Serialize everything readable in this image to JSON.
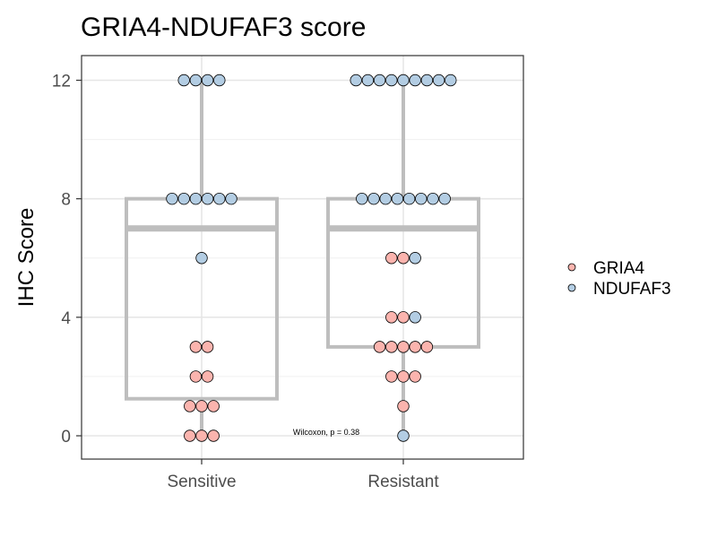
{
  "chart_data": {
    "type": "boxplot-dotplot",
    "title": "GRIA4-NDUFAF3 score",
    "ylabel": "IHC Score",
    "xlabel": "",
    "categories": [
      "Sensitive",
      "Resistant"
    ],
    "ylim": [
      -0.8,
      12.8
    ],
    "yticks": [
      0,
      4,
      8,
      12
    ],
    "grid": true,
    "legend_position": "right",
    "annotation": "Wilcoxon, p = 0.38",
    "box_color": "#bebebe",
    "boxes": [
      {
        "category": "Sensitive",
        "whisker_low": 0,
        "q1": 1.25,
        "median": 7,
        "q3": 8,
        "whisker_high": 12
      },
      {
        "category": "Resistant",
        "whisker_low": 0,
        "q1": 3,
        "median": 7,
        "q3": 8,
        "whisker_high": 12
      }
    ],
    "series": [
      {
        "name": "GRIA4",
        "color": "#fbb4ae",
        "points": {
          "Sensitive": [
            0,
            0,
            0,
            1,
            1,
            1,
            2,
            2,
            3,
            3
          ],
          "Resistant": [
            1,
            2,
            2,
            2,
            3,
            3,
            3,
            3,
            3,
            4,
            4,
            6,
            6
          ]
        }
      },
      {
        "name": "NDUFAF3",
        "color": "#b3cde3",
        "points": {
          "Sensitive": [
            6,
            8,
            8,
            8,
            8,
            8,
            8,
            12,
            12,
            12,
            12
          ],
          "Resistant": [
            0,
            4,
            6,
            8,
            8,
            8,
            8,
            8,
            8,
            8,
            8,
            12,
            12,
            12,
            12,
            12,
            12,
            12,
            12,
            12
          ]
        }
      }
    ]
  }
}
